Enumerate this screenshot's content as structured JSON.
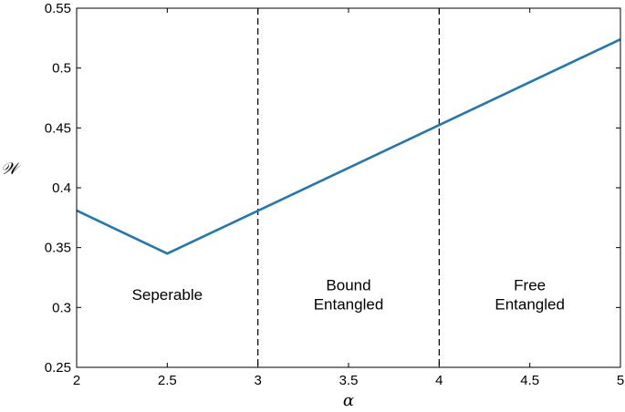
{
  "chart_data": {
    "type": "line",
    "title": "",
    "xlabel": "α",
    "ylabel": "𝒲",
    "xlim": [
      2,
      5
    ],
    "ylim": [
      0.25,
      0.55
    ],
    "xticks": [
      2,
      2.5,
      3,
      3.5,
      4,
      4.5,
      5
    ],
    "xtick_labels": [
      "2",
      "2.5",
      "3",
      "3.5",
      "4",
      "4.5",
      "5"
    ],
    "yticks": [
      0.25,
      0.3,
      0.35,
      0.4,
      0.45,
      0.5,
      0.55
    ],
    "ytick_labels": [
      "0.25",
      "0.3",
      "0.35",
      "0.4",
      "0.45",
      "0.5",
      "0.55"
    ],
    "grid": false,
    "legend": "none",
    "series": [
      {
        "color": "#1f77b4",
        "x": [
          2,
          2.5,
          5
        ],
        "y": [
          0.381,
          0.345,
          0.524
        ]
      }
    ],
    "vlines": [
      {
        "x": 3,
        "style": "dashed",
        "color": "#000000"
      },
      {
        "x": 4,
        "style": "dashed",
        "color": "#000000"
      }
    ],
    "regions": [
      {
        "lines": [
          "Seperable"
        ],
        "x": 2.5,
        "y": 0.311
      },
      {
        "lines": [
          "Bound",
          "Entangled"
        ],
        "x": 3.5,
        "y": 0.311
      },
      {
        "lines": [
          "Free",
          "Entangled"
        ],
        "x": 4.5,
        "y": 0.311
      }
    ]
  }
}
